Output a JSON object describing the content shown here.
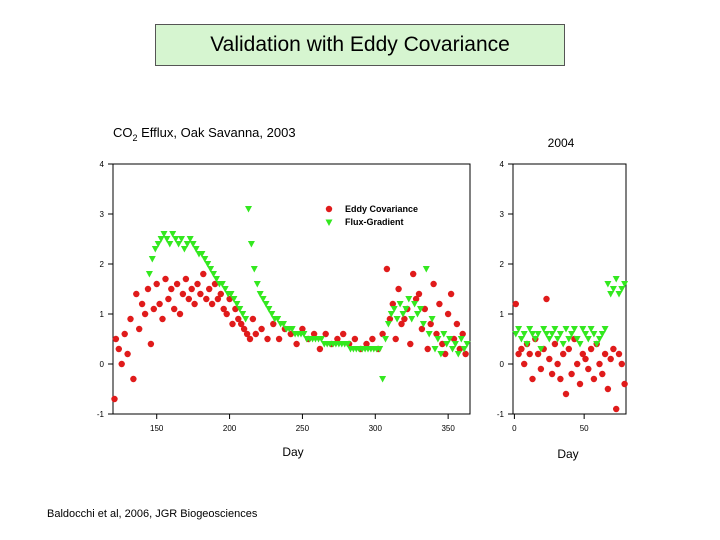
{
  "slide": {
    "title": "Validation with Eddy Covariance",
    "citation": "Baldocchi et al, 2006, JGR Biogeosciences"
  },
  "colors": {
    "title_bg": "#d6f5d0",
    "eddy": "#e01b1b",
    "flux": "#33e81f"
  },
  "chart_data": [
    {
      "type": "scatter",
      "title_main": "CO",
      "title_sub": "2",
      "title_rest": " Efflux, Oak Savanna, 2003",
      "xlabel": "Day",
      "ylabel": "",
      "xlim": [
        120,
        365
      ],
      "ylim": [
        -1,
        4
      ],
      "xticks": [
        150,
        200,
        250,
        300,
        350
      ],
      "yticks": [
        -1,
        0,
        1,
        2,
        3,
        4
      ],
      "legend_position": "top-right",
      "series": [
        {
          "name": "Eddy Covariance",
          "marker": "circle",
          "x": [
            121,
            122,
            124,
            126,
            128,
            130,
            132,
            134,
            136,
            138,
            140,
            142,
            144,
            146,
            148,
            150,
            152,
            154,
            156,
            158,
            160,
            162,
            164,
            166,
            168,
            170,
            172,
            174,
            176,
            178,
            180,
            182,
            184,
            186,
            188,
            190,
            192,
            194,
            196,
            198,
            200,
            202,
            204,
            206,
            208,
            210,
            212,
            214,
            216,
            218,
            222,
            226,
            230,
            234,
            238,
            242,
            246,
            250,
            254,
            258,
            262,
            266,
            270,
            274,
            278,
            282,
            286,
            290,
            294,
            298,
            302,
            305,
            308,
            310,
            312,
            314,
            316,
            318,
            320,
            322,
            324,
            326,
            328,
            330,
            332,
            334,
            336,
            338,
            340,
            342,
            344,
            346,
            348,
            350,
            352,
            354,
            356,
            358,
            360,
            362
          ],
          "y": [
            -0.7,
            0.5,
            0.3,
            0.0,
            0.6,
            0.2,
            0.9,
            -0.3,
            1.4,
            0.7,
            1.2,
            1.0,
            1.5,
            0.4,
            1.1,
            1.6,
            1.2,
            0.9,
            1.7,
            1.3,
            1.5,
            1.1,
            1.6,
            1.0,
            1.4,
            1.7,
            1.3,
            1.5,
            1.2,
            1.6,
            1.4,
            1.8,
            1.3,
            1.5,
            1.2,
            1.6,
            1.3,
            1.4,
            1.1,
            1.0,
            1.3,
            0.8,
            1.1,
            0.9,
            0.8,
            0.7,
            0.6,
            0.5,
            0.9,
            0.6,
            0.7,
            0.5,
            0.8,
            0.5,
            0.7,
            0.6,
            0.4,
            0.7,
            0.5,
            0.6,
            0.3,
            0.6,
            0.4,
            0.5,
            0.6,
            0.4,
            0.5,
            0.3,
            0.4,
            0.5,
            0.3,
            0.6,
            1.9,
            0.9,
            1.2,
            0.5,
            1.5,
            0.8,
            0.9,
            1.1,
            0.4,
            1.8,
            1.3,
            1.4,
            0.7,
            1.1,
            0.3,
            0.8,
            1.6,
            0.6,
            1.2,
            0.4,
            0.2,
            1.0,
            1.4,
            0.5,
            0.8,
            0.3,
            0.6,
            0.2
          ]
        },
        {
          "name": "Flux-Gradient",
          "marker": "triangle-down",
          "x": [
            145,
            147,
            149,
            151,
            153,
            155,
            157,
            159,
            161,
            163,
            165,
            167,
            169,
            171,
            173,
            175,
            177,
            179,
            181,
            183,
            185,
            187,
            189,
            191,
            193,
            195,
            197,
            199,
            201,
            203,
            205,
            207,
            209,
            211,
            213,
            215,
            217,
            219,
            221,
            223,
            225,
            227,
            229,
            231,
            233,
            235,
            237,
            239,
            241,
            243,
            245,
            247,
            249,
            251,
            253,
            255,
            257,
            259,
            261,
            263,
            265,
            267,
            269,
            271,
            273,
            275,
            277,
            279,
            281,
            283,
            285,
            287,
            289,
            291,
            293,
            295,
            297,
            299,
            301,
            303,
            305,
            307,
            309,
            311,
            313,
            315,
            317,
            319,
            321,
            323,
            325,
            327,
            329,
            331,
            333,
            335,
            337,
            339,
            341,
            343,
            345,
            347,
            349,
            351,
            353,
            355,
            357,
            359,
            361,
            363
          ],
          "y": [
            1.8,
            2.1,
            2.3,
            2.4,
            2.5,
            2.6,
            2.5,
            2.4,
            2.6,
            2.5,
            2.4,
            2.5,
            2.3,
            2.4,
            2.5,
            2.4,
            2.3,
            2.2,
            2.2,
            2.1,
            2.0,
            1.9,
            1.8,
            1.7,
            1.6,
            1.6,
            1.5,
            1.4,
            1.4,
            1.3,
            1.2,
            1.1,
            1.0,
            0.9,
            3.1,
            2.4,
            1.9,
            1.6,
            1.4,
            1.3,
            1.2,
            1.1,
            1.0,
            0.9,
            0.9,
            0.8,
            0.8,
            0.7,
            0.7,
            0.7,
            0.6,
            0.6,
            0.6,
            0.6,
            0.5,
            0.5,
            0.5,
            0.5,
            0.5,
            0.5,
            0.4,
            0.4,
            0.4,
            0.4,
            0.4,
            0.4,
            0.4,
            0.4,
            0.4,
            0.3,
            0.3,
            0.3,
            0.3,
            0.3,
            0.3,
            0.3,
            0.3,
            0.3,
            0.3,
            0.3,
            -0.3,
            0.5,
            0.8,
            1.0,
            1.1,
            0.9,
            1.2,
            1.0,
            1.1,
            1.3,
            0.9,
            1.2,
            1.0,
            1.1,
            0.8,
            1.9,
            0.6,
            0.9,
            0.3,
            0.5,
            0.2,
            0.6,
            0.4,
            0.5,
            0.3,
            0.4,
            0.2,
            0.5,
            0.3,
            0.4
          ]
        }
      ],
      "annotations": [
        "Eddy Covariance",
        "Flux-Gradient"
      ]
    },
    {
      "type": "scatter",
      "title": "2004",
      "xlabel": "Day",
      "xlim": [
        -1,
        80
      ],
      "ylim": [
        -1,
        4
      ],
      "xticks": [
        0,
        50
      ],
      "yticks": [
        -1,
        0,
        1,
        2,
        3,
        4
      ],
      "series": [
        {
          "name": "Eddy Covariance",
          "marker": "circle",
          "x": [
            1,
            3,
            5,
            7,
            9,
            11,
            13,
            15,
            17,
            19,
            21,
            23,
            25,
            27,
            29,
            31,
            33,
            35,
            37,
            39,
            41,
            43,
            45,
            47,
            49,
            51,
            53,
            55,
            57,
            59,
            61,
            63,
            65,
            67,
            69,
            71,
            73,
            75,
            77,
            79
          ],
          "y": [
            1.2,
            0.2,
            0.3,
            0.0,
            0.4,
            0.2,
            -0.3,
            0.5,
            0.2,
            -0.1,
            0.3,
            1.3,
            0.1,
            -0.2,
            0.4,
            0.0,
            -0.3,
            0.2,
            -0.6,
            0.3,
            -0.2,
            0.5,
            0.0,
            -0.4,
            0.2,
            0.1,
            -0.1,
            0.3,
            -0.3,
            0.4,
            0.0,
            -0.2,
            0.2,
            -0.5,
            0.1,
            0.3,
            -0.9,
            0.2,
            0.0,
            -0.4
          ]
        },
        {
          "name": "Flux-Gradient",
          "marker": "triangle-down",
          "x": [
            1,
            3,
            5,
            7,
            9,
            11,
            13,
            15,
            17,
            19,
            21,
            23,
            25,
            27,
            29,
            31,
            33,
            35,
            37,
            39,
            41,
            43,
            45,
            47,
            49,
            51,
            53,
            55,
            57,
            59,
            61,
            63,
            65,
            67,
            69,
            71,
            73,
            75,
            77,
            79
          ],
          "y": [
            0.6,
            0.7,
            0.5,
            0.6,
            0.4,
            0.7,
            0.6,
            0.5,
            0.6,
            0.3,
            0.7,
            0.6,
            0.5,
            0.6,
            0.7,
            0.5,
            0.6,
            0.4,
            0.7,
            0.5,
            0.6,
            0.7,
            0.5,
            0.4,
            0.7,
            0.6,
            0.5,
            0.7,
            0.6,
            0.4,
            0.5,
            0.6,
            0.7,
            1.6,
            1.4,
            1.5,
            1.7,
            1.4,
            1.5,
            1.6
          ]
        }
      ]
    }
  ]
}
